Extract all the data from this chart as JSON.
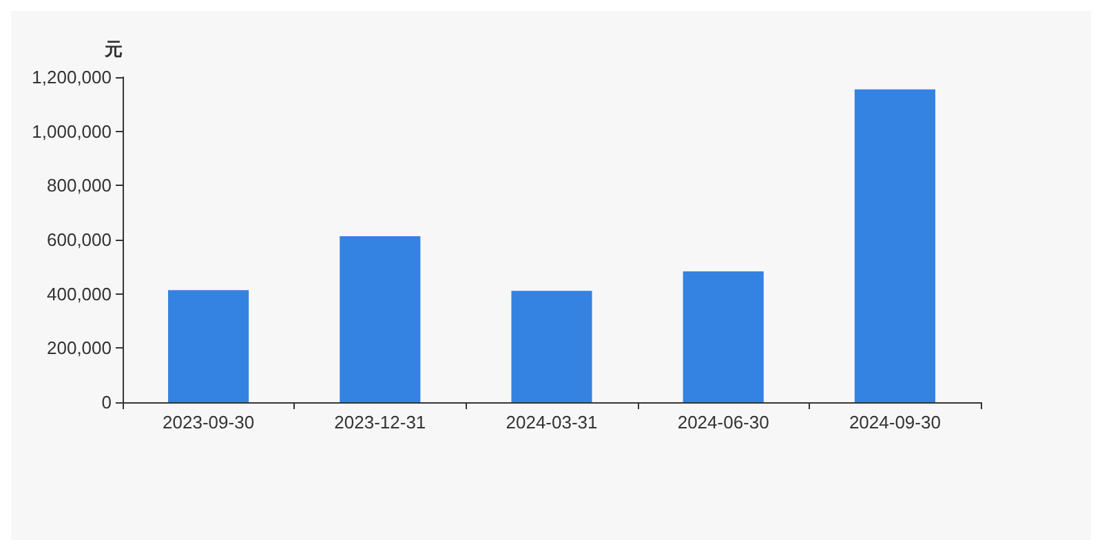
{
  "chart_data": {
    "type": "bar",
    "ylabel": "元",
    "categories": [
      "2023-09-30",
      "2023-12-31",
      "2024-03-31",
      "2024-06-30",
      "2024-09-30"
    ],
    "values": [
      414000,
      613000,
      411000,
      483000,
      1155000
    ],
    "color": "#3482e2",
    "ylim": [
      0,
      1200000
    ],
    "yticks": [
      0,
      {
        "value": 200000,
        "label": "200,000"
      },
      {
        "value": 400000,
        "label": "400,000"
      },
      {
        "value": 600000,
        "label": "600,000"
      },
      {
        "value": 800000,
        "label": "800,000"
      },
      {
        "value": 1000000,
        "label": "1,000,000"
      },
      {
        "value": 1200000,
        "label": "1,200,000"
      }
    ],
    "grid": false
  }
}
